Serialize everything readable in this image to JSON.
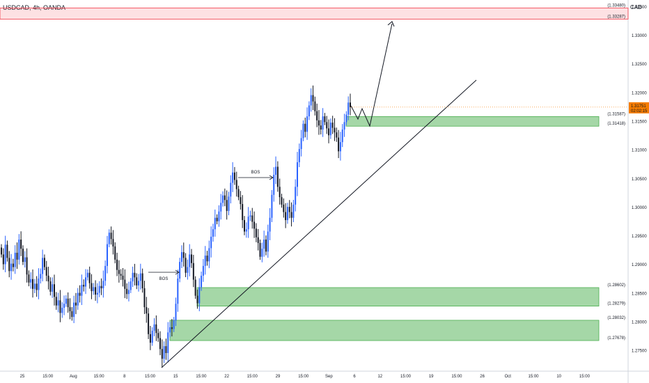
{
  "symbol_title": "USDCAD, 4h, OANDA",
  "currency_label": "CAD",
  "chart_data": {
    "type": "candlestick",
    "ylim": [
      1.2715,
      1.3362
    ],
    "y_ticks": [
      "1.27500",
      "1.28000",
      "1.28500",
      "1.29000",
      "1.29500",
      "1.30000",
      "1.30500",
      "1.31000",
      "1.31500",
      "1.32000",
      "1.32500",
      "1.33000",
      "1.33500"
    ],
    "x_ticks": [
      "25",
      "15:00",
      "Aug",
      "15:00",
      "8",
      "15:00",
      "15",
      "15:00",
      "22",
      "15:00",
      "29",
      "15:00",
      "Sep",
      "6",
      "12",
      "15:00",
      "19",
      "15:00",
      "26",
      "Oct",
      "15:00",
      "10",
      "15:00"
    ],
    "current_price": {
      "label": "1.31751",
      "countdown": "02:02:15",
      "value": 1.31751,
      "color": "#f57c00"
    },
    "zones": [
      {
        "name": "supply-zone",
        "top_label": "1.33480",
        "bottom_label": "1.33287",
        "top": 1.3348,
        "bottom": 1.33287,
        "color": "#f23645"
      },
      {
        "name": "demand-zone-upper",
        "top_label": "1.31587",
        "bottom_label": "1.31418",
        "top": 1.31587,
        "bottom": 1.31418,
        "color": "#4caf50"
      },
      {
        "name": "demand-zone-middle",
        "top_label": "1.28602",
        "bottom_label": "1.28279",
        "top": 1.28602,
        "bottom": 1.28279,
        "color": "#4caf50"
      },
      {
        "name": "demand-zone-lower",
        "top_label": "1.28032",
        "bottom_label": "1.27678",
        "top": 1.28032,
        "bottom": 1.27678,
        "color": "#4caf50"
      }
    ],
    "annotations": [
      {
        "text": "BOS",
        "price": 1.2896
      },
      {
        "text": "BOS",
        "price": 1.3065
      }
    ],
    "up_color": "#2962ff",
    "down_color": "#131722",
    "candle_closes": [
      1.2918,
      1.2901,
      1.2935,
      1.2912,
      1.2889,
      1.2902,
      1.2896,
      1.2921,
      1.2909,
      1.2944,
      1.2928,
      1.2905,
      1.2913,
      1.2883,
      1.2869,
      1.2875,
      1.2858,
      1.2867,
      1.2856,
      1.2876,
      1.2884,
      1.2912,
      1.2896,
      1.2881,
      1.2871,
      1.2853,
      1.2866,
      1.2844,
      1.2829,
      1.2838,
      1.2816,
      1.2825,
      1.2832,
      1.2841,
      1.2826,
      1.2819,
      1.2809,
      1.2834,
      1.2829,
      1.2851,
      1.2846,
      1.2865,
      1.2862,
      1.2878,
      1.2886,
      1.2868,
      1.2854,
      1.2861,
      1.2848,
      1.2851,
      1.2863,
      1.2859,
      1.2872,
      1.2898,
      1.2936,
      1.2956,
      1.2945,
      1.2932,
      1.2909,
      1.2891,
      1.2884,
      1.2881,
      1.2874,
      1.2858,
      1.2849,
      1.2856,
      1.2871,
      1.2886,
      1.2878,
      1.2864,
      1.2872,
      1.2885,
      1.2859,
      1.2826,
      1.2815,
      1.2779,
      1.2764,
      1.2785,
      1.2796,
      1.2781,
      1.2772,
      1.2753,
      1.2736,
      1.2758,
      1.2746,
      1.2782,
      1.2791,
      1.2788,
      1.2803,
      1.2832,
      1.2876,
      1.2905,
      1.2922,
      1.2912,
      1.2886,
      1.2896,
      1.2918,
      1.2903,
      1.2874,
      1.2846,
      1.2833,
      1.2861,
      1.2881,
      1.2898,
      1.2916,
      1.2906,
      1.2929,
      1.2949,
      1.2962,
      1.2982,
      1.2976,
      1.2993,
      1.3008,
      1.3021,
      1.3013,
      1.2994,
      1.3019,
      1.3043,
      1.3061,
      1.3048,
      1.3032,
      1.3018,
      1.3006,
      1.2978,
      1.2958,
      1.2962,
      1.2984,
      1.2986,
      1.2975,
      1.2963,
      1.2948,
      1.2938,
      1.2914,
      1.2928,
      1.2944,
      1.2923,
      1.2958,
      1.2982,
      1.3022,
      1.3057,
      1.3071,
      1.3036,
      1.3018,
      1.3005,
      1.2992,
      1.2978,
      1.3001,
      1.2992,
      1.2982,
      1.3005,
      1.3036,
      1.3079,
      1.3102,
      1.3121,
      1.3146,
      1.3132,
      1.3159,
      1.3178,
      1.3196,
      1.3185,
      1.3168,
      1.3152,
      1.3143,
      1.3136,
      1.3159,
      1.3149,
      1.3138,
      1.3126,
      1.3148,
      1.3139,
      1.3131,
      1.3122,
      1.3098,
      1.3114,
      1.3136,
      1.3149,
      1.3162,
      1.3183,
      1.3175
    ]
  }
}
